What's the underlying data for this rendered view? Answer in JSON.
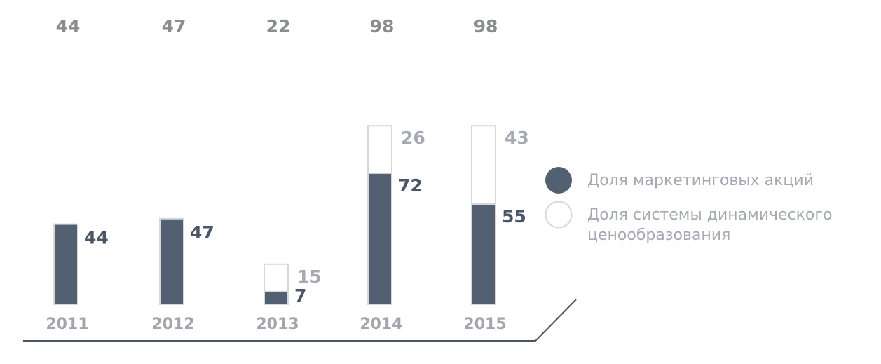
{
  "chart_data": {
    "type": "bar",
    "stacked": true,
    "categories": [
      "2011",
      "2012",
      "2013",
      "2014",
      "2015"
    ],
    "totals": [
      44,
      47,
      22,
      98,
      98
    ],
    "series": [
      {
        "name": "Доля маркетинговых акций",
        "values": [
          44,
          47,
          7,
          72,
          55
        ],
        "color": "#526072"
      },
      {
        "name": "Доля системы динамического ценообразования",
        "values": [
          null,
          null,
          15,
          26,
          43
        ],
        "color": "#ffffff"
      }
    ],
    "bottom_labels": [
      "7",
      "72",
      "55"
    ],
    "colors": {
      "bar_fill": "#526072",
      "bar_outline": "#d5d7dc",
      "dark_label": "#4a5567",
      "light_label": "#a6a9b3",
      "total_label": "#8a8c90",
      "year_label": "#a2a5ad",
      "axis_line": "#4a5567"
    },
    "legend_position": "right",
    "grid": false
  }
}
